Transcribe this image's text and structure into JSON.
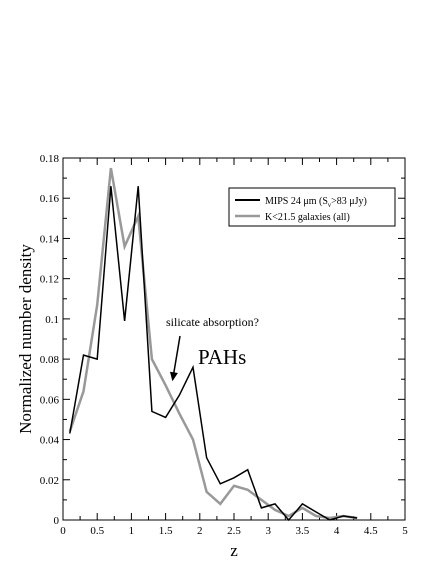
{
  "chart_data": {
    "type": "line",
    "xlabel": "z",
    "ylabel": "Normalized number density",
    "xlim": [
      0,
      5
    ],
    "ylim": [
      0,
      0.18
    ],
    "x_ticks": [
      "0",
      "0.5",
      "1",
      "1.5",
      "2",
      "2.5",
      "3",
      "3.5",
      "4",
      "4.5",
      "5"
    ],
    "y_ticks": [
      "0",
      "0.02",
      "0.04",
      "0.06",
      "0.08",
      "0.1",
      "0.12",
      "0.14",
      "0.16",
      "0.18"
    ],
    "grid": false,
    "legend_position": "top-right",
    "legend": [
      {
        "label_pre": "MIPS 24 μm (S",
        "label_sub": "ν",
        "label_post": ">83 μJy)",
        "color": "#000000"
      },
      {
        "label_pre": "K<21.5 galaxies (all)",
        "label_sub": "",
        "label_post": "",
        "color": "#999999"
      }
    ],
    "series": [
      {
        "name": "MIPS 24 μm (Sν>83 μJy)",
        "color": "#000000",
        "x": [
          0.1,
          0.3,
          0.5,
          0.7,
          0.9,
          1.1,
          1.3,
          1.5,
          1.7,
          1.9,
          2.1,
          2.3,
          2.5,
          2.7,
          2.9,
          3.1,
          3.3,
          3.5,
          3.7,
          3.9,
          4.1,
          4.3
        ],
        "y": [
          0.043,
          0.082,
          0.08,
          0.166,
          0.099,
          0.166,
          0.054,
          0.051,
          0.062,
          0.076,
          0.031,
          0.018,
          0.021,
          0.025,
          0.006,
          0.008,
          0.0,
          0.008,
          0.004,
          0.0,
          0.002,
          0.001
        ]
      },
      {
        "name": "K<21.5 galaxies (all)",
        "color": "#999999",
        "x": [
          0.1,
          0.3,
          0.5,
          0.7,
          0.9,
          1.1,
          1.3,
          1.5,
          1.7,
          1.9,
          2.1,
          2.3,
          2.5,
          2.7,
          2.9,
          3.1,
          3.3,
          3.5,
          3.7,
          3.9,
          4.1,
          4.3
        ],
        "y": [
          0.044,
          0.064,
          0.107,
          0.175,
          0.136,
          0.151,
          0.08,
          0.067,
          0.053,
          0.04,
          0.014,
          0.008,
          0.017,
          0.015,
          0.01,
          0.005,
          0.002,
          0.006,
          0.002,
          0.001,
          0.002,
          0.001
        ]
      }
    ],
    "annotations": [
      {
        "text": "silicate absorption?",
        "arrow_to": [
          1.6,
          0.069
        ]
      },
      {
        "text": "PAHs"
      }
    ]
  }
}
